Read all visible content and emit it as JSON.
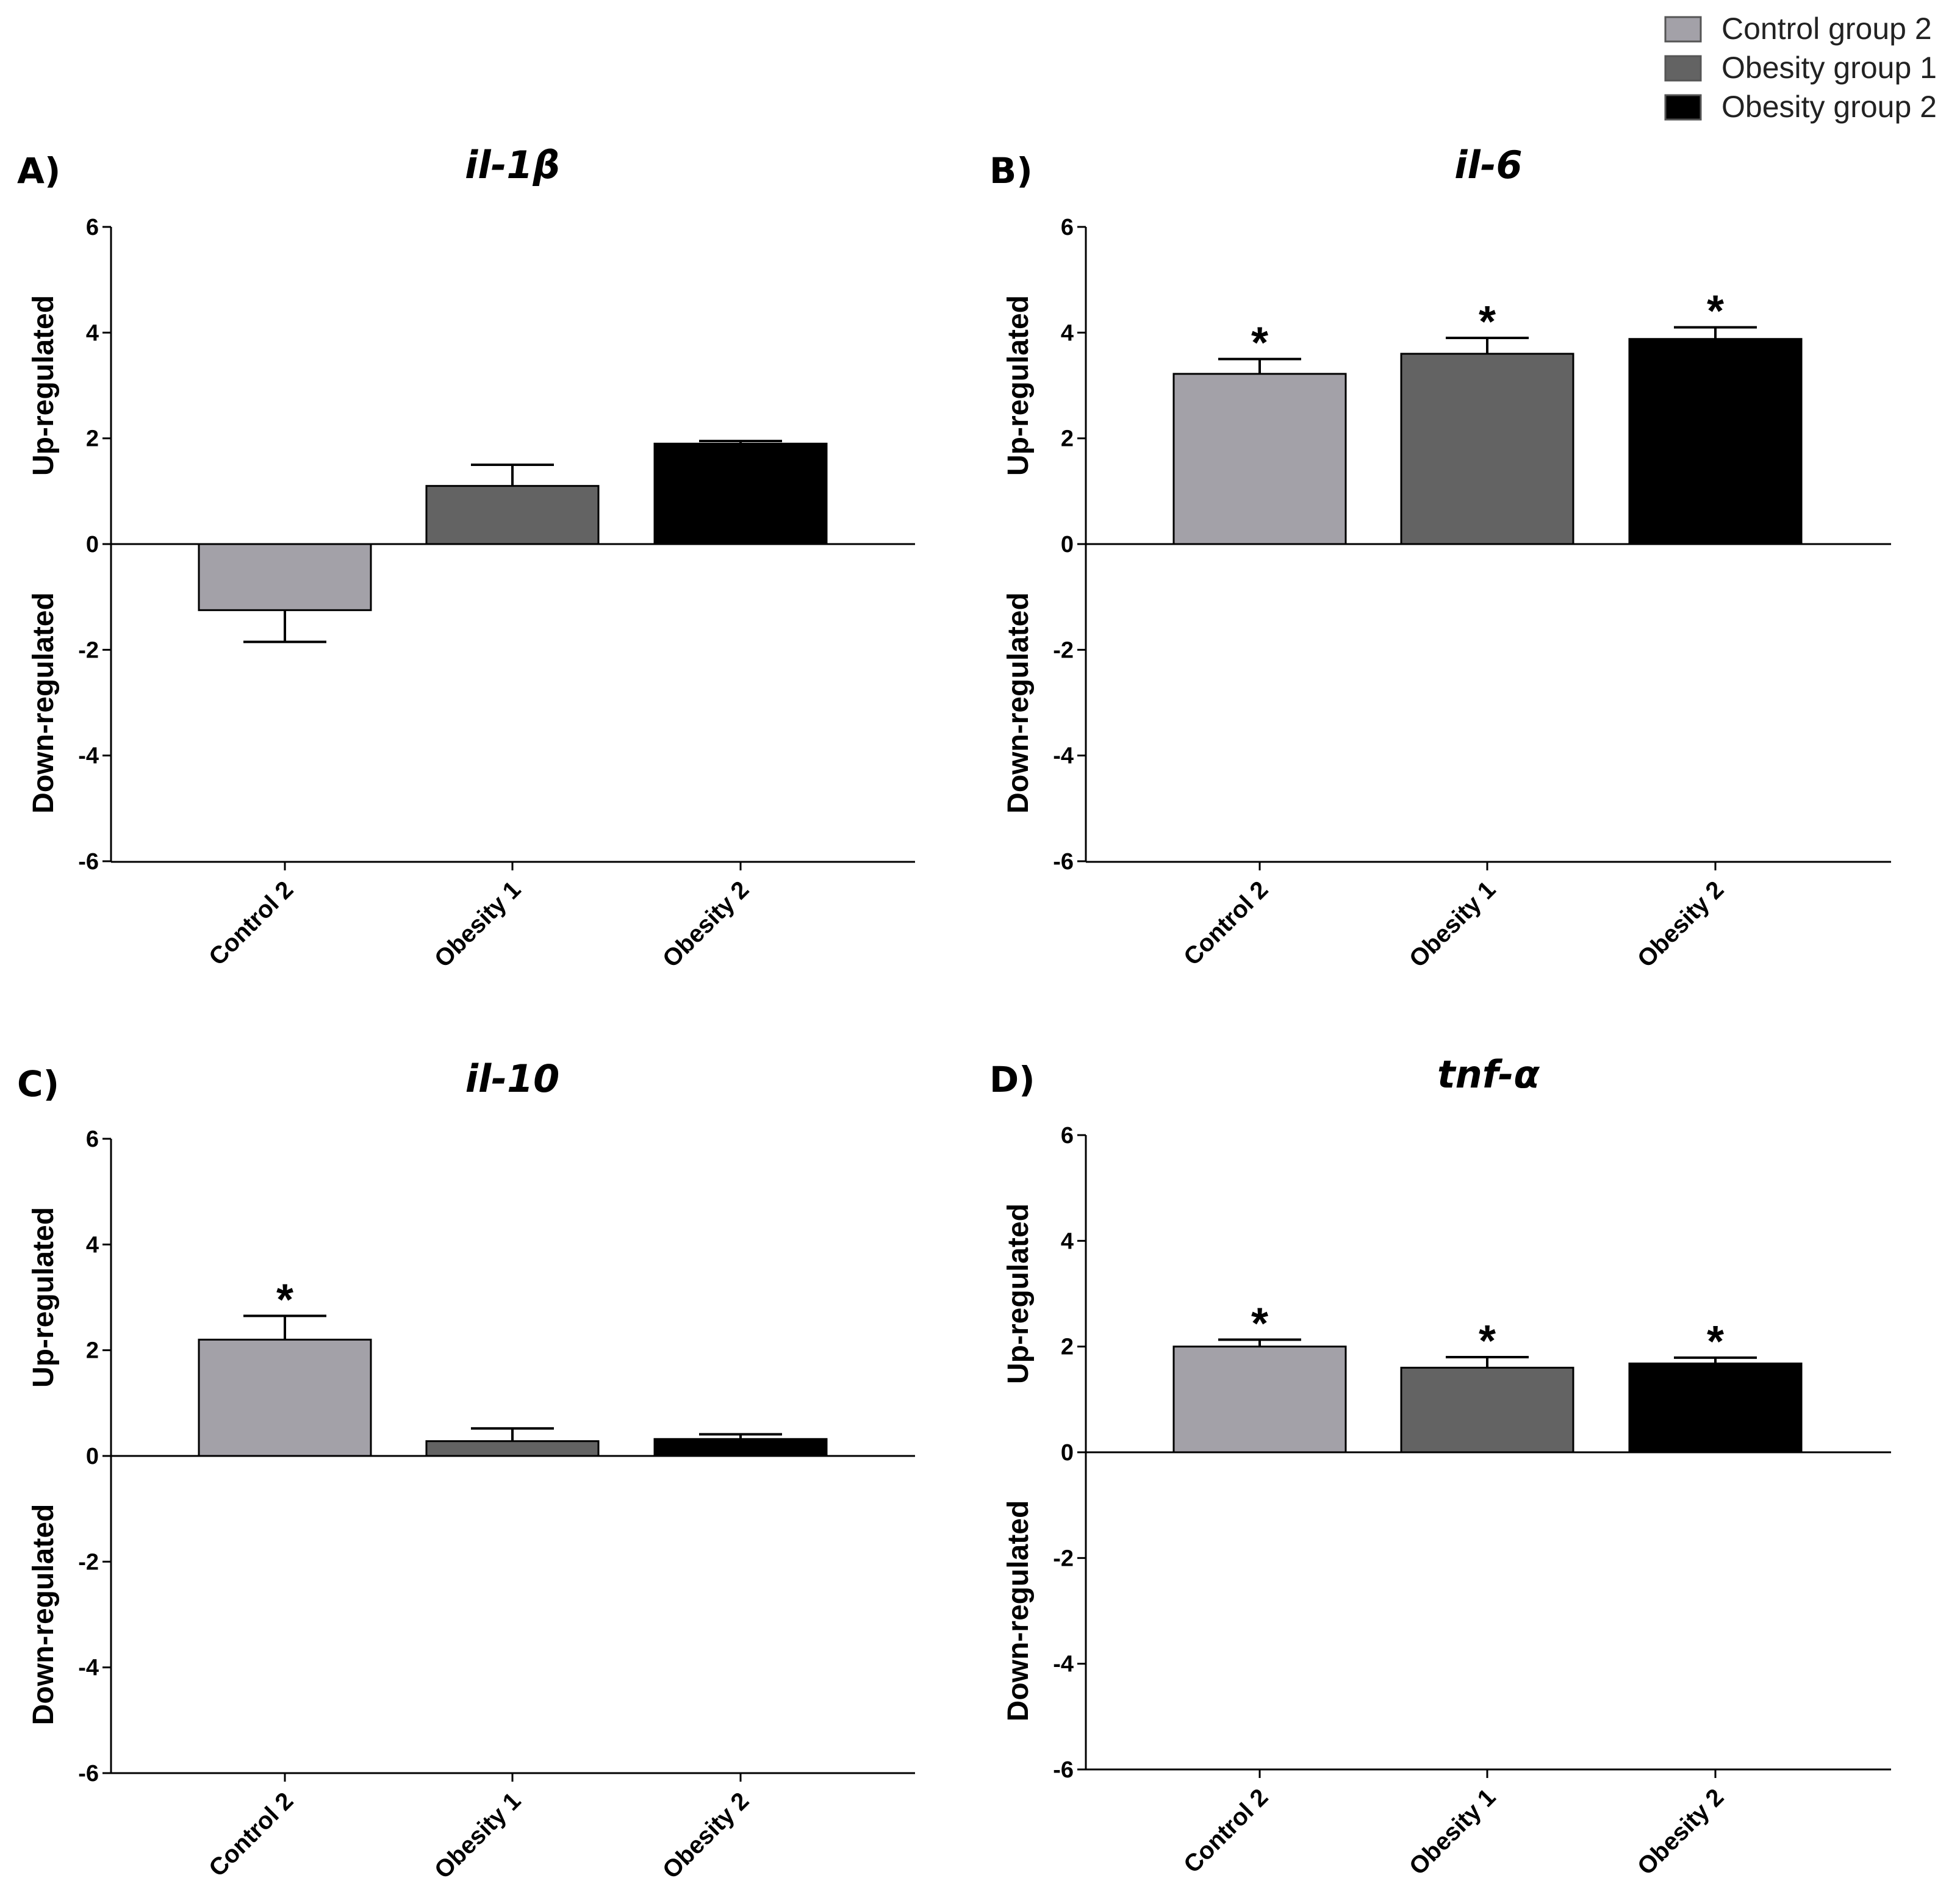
{
  "legend": [
    {
      "label": "Control group 2",
      "color": "#a3a1a8"
    },
    {
      "label": "Obesity group 1",
      "color": "#636363"
    },
    {
      "label": "Obesity group 2",
      "color": "#000000"
    }
  ],
  "axis_titles": {
    "up": "Up-regulated",
    "down": "Down-regulated"
  },
  "chart_data": [
    {
      "panel": "A)",
      "type": "bar",
      "title": "il-1β",
      "categories": [
        "Control 2",
        "Obesity 1",
        "Obesity 2"
      ],
      "values": [
        -1.25,
        1.1,
        1.9
      ],
      "errors": [
        0.6,
        0.4,
        0.05
      ],
      "significance": [
        "",
        "",
        ""
      ],
      "ylim": [
        -6,
        6
      ],
      "yticks": [
        -6,
        -4,
        -2,
        0,
        2,
        4,
        6
      ]
    },
    {
      "panel": "B)",
      "type": "bar",
      "title": "il-6",
      "categories": [
        "Control 2",
        "Obesity 1",
        "Obesity 2"
      ],
      "values": [
        3.22,
        3.6,
        3.88
      ],
      "errors": [
        0.28,
        0.3,
        0.22
      ],
      "significance": [
        "*",
        "*",
        "*"
      ],
      "ylim": [
        -6,
        6
      ],
      "yticks": [
        -6,
        -4,
        -2,
        0,
        2,
        4,
        6
      ]
    },
    {
      "panel": "C)",
      "type": "bar",
      "title": "il-10",
      "categories": [
        "Control 2",
        "Obesity 1",
        "Obesity 2"
      ],
      "values": [
        2.2,
        0.28,
        0.32
      ],
      "errors": [
        0.45,
        0.24,
        0.09
      ],
      "significance": [
        "*",
        "",
        ""
      ],
      "ylim": [
        -6,
        6
      ],
      "yticks": [
        -6,
        -4,
        -2,
        0,
        2,
        4,
        6
      ]
    },
    {
      "panel": "D)",
      "type": "bar",
      "title": "tnf-α",
      "categories": [
        "Control 2",
        "Obesity 1",
        "Obesity 2"
      ],
      "values": [
        2.0,
        1.6,
        1.68
      ],
      "errors": [
        0.13,
        0.2,
        0.11
      ],
      "significance": [
        "*",
        "*",
        "*"
      ],
      "ylim": [
        -6,
        6
      ],
      "yticks": [
        -6,
        -4,
        -2,
        0,
        2,
        4,
        6
      ]
    }
  ]
}
